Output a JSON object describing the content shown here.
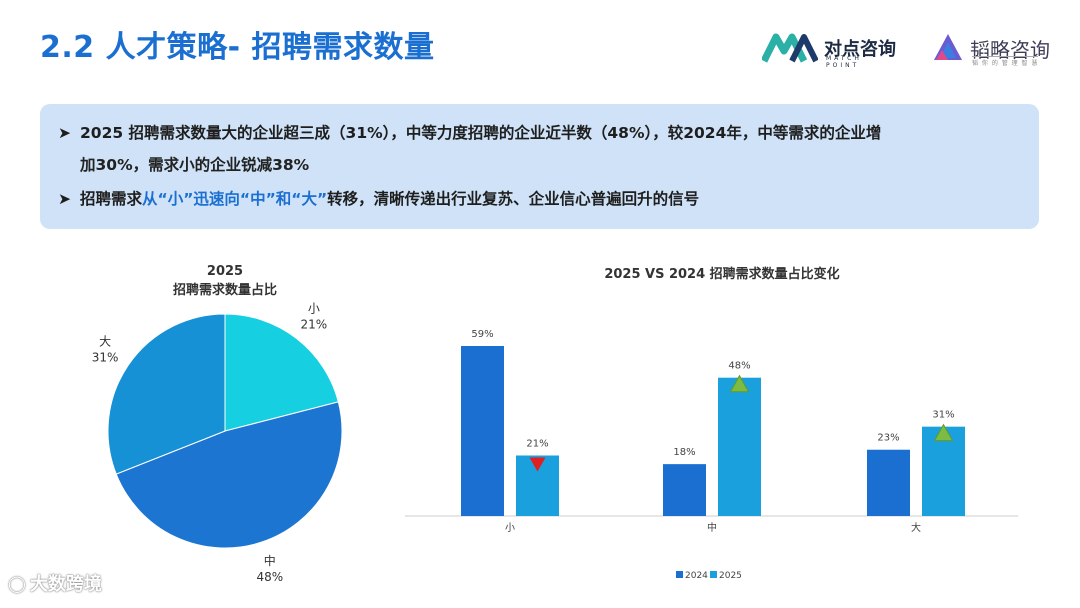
{
  "header": {
    "title": "2.2 人才策略- 招聘需求数量",
    "logo_left": "对点咨询",
    "logo_left_sub": "MATCH POINT",
    "logo_right": "韬略咨询",
    "logo_right_sub": "韬 你 的 管 理 智 慧"
  },
  "summary": {
    "bullet1_line1": "2025 招聘需求数量大的企业超三成（31%），中等力度招聘的企业近半数（48%），较2024年，中等需求的企业增",
    "bullet1_line2": "加30%，需求小的企业锐减38%",
    "bullet2_pre": "招聘需求",
    "bullet2_highlight": "从“小”迅速向“中”和“大”",
    "bullet2_post": "转移，清晰传递出行业复苏、企业信心普遍回升的信号"
  },
  "watermark": "大数跨境",
  "colors": {
    "title_blue": "#1a6fd1",
    "pie_small": "#16cfe0",
    "pie_mid": "#1d75d2",
    "pie_large": "#1691d6",
    "bar_2024": "#1a6fd1",
    "bar_2025": "#1aa0dc",
    "down_marker": "#e02020",
    "up_marker": "#7dbb42"
  },
  "chart_data": [
    {
      "type": "pie",
      "title": "2025",
      "subtitle": "招聘需求数量占比",
      "slices": [
        {
          "label": "小",
          "value": 21,
          "display": "21%"
        },
        {
          "label": "中",
          "value": 48,
          "display": "48%"
        },
        {
          "label": "大",
          "value": 31,
          "display": "31%"
        }
      ]
    },
    {
      "type": "bar",
      "title": "2025 VS 2024 招聘需求数量占比变化",
      "categories": [
        "小",
        "中",
        "大"
      ],
      "series": [
        {
          "name": "2024",
          "values": [
            59,
            18,
            23
          ],
          "labels": [
            "59%",
            "18%",
            "23%"
          ]
        },
        {
          "name": "2025",
          "values": [
            21,
            48,
            31
          ],
          "labels": [
            "21%",
            "48%",
            "31%"
          ]
        }
      ],
      "change_markers": [
        "down",
        "up",
        "up"
      ],
      "ylim": [
        0,
        60
      ],
      "legend": "bottom"
    }
  ]
}
